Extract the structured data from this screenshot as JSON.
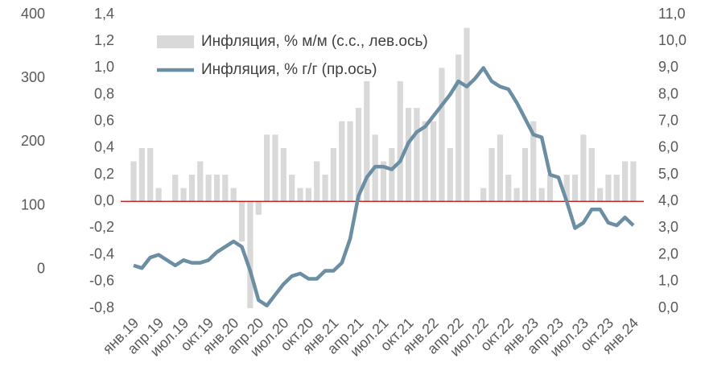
{
  "chart_data": {
    "type": "bar_line",
    "categories": [
      "янв.19",
      null,
      null,
      "апр.19",
      null,
      null,
      "июл.19",
      null,
      null,
      "окт.19",
      null,
      null,
      "янв.20",
      null,
      null,
      "апр.20",
      null,
      null,
      "июл.20",
      null,
      null,
      "окт.20",
      null,
      null,
      "янв.21",
      null,
      null,
      "апр.21",
      null,
      null,
      "июл.21",
      null,
      null,
      "окт.21",
      null,
      null,
      "янв.22",
      null,
      null,
      "апр.22",
      null,
      null,
      "июл.22",
      null,
      null,
      "окт.22",
      null,
      null,
      "янв.23",
      null,
      null,
      "апр.23",
      null,
      null,
      "июл.23",
      null,
      null,
      "окт.23",
      null,
      null,
      "янв.24"
    ],
    "series": [
      {
        "name": "Инфляция, % м/м (с.с., лев.ось)",
        "type": "bar",
        "color": "#d9d9d9",
        "axis": "y",
        "values": [
          0.3,
          0.4,
          0.4,
          0.1,
          0.0,
          0.2,
          0.1,
          0.2,
          0.3,
          0.2,
          0.2,
          0.2,
          0.1,
          -0.3,
          -0.8,
          -0.1,
          0.5,
          0.5,
          0.4,
          0.2,
          0.1,
          0.1,
          0.3,
          0.2,
          0.4,
          0.6,
          0.6,
          0.7,
          0.9,
          0.5,
          0.3,
          0.4,
          0.9,
          0.7,
          0.7,
          0.6,
          0.6,
          1.0,
          0.4,
          1.1,
          1.3,
          0.0,
          0.1,
          0.4,
          0.5,
          0.2,
          0.1,
          0.4,
          0.6,
          0.1,
          0.2,
          0.0,
          0.2,
          0.2,
          0.5,
          0.4,
          0.1,
          0.2,
          0.2,
          0.3,
          0.3
        ]
      },
      {
        "name": "Инфляция, % г/г (пр.ось)",
        "type": "line",
        "color": "#6b8ea3",
        "axis": "y2",
        "values": [
          1.6,
          1.5,
          1.9,
          2.0,
          1.8,
          1.6,
          1.8,
          1.7,
          1.7,
          1.8,
          2.1,
          2.3,
          2.5,
          2.3,
          1.4,
          0.3,
          0.1,
          0.5,
          0.9,
          1.2,
          1.3,
          1.1,
          1.1,
          1.4,
          1.4,
          1.7,
          2.6,
          4.2,
          4.9,
          5.3,
          5.3,
          5.2,
          5.5,
          6.2,
          6.6,
          6.8,
          7.2,
          7.6,
          8.0,
          8.5,
          8.3,
          8.6,
          9.0,
          8.5,
          8.3,
          8.2,
          7.7,
          7.1,
          6.5,
          6.4,
          5.0,
          4.9,
          4.0,
          3.0,
          3.2,
          3.7,
          3.7,
          3.2,
          3.1,
          3.4,
          3.1
        ]
      }
    ],
    "ylim": [
      -0.8,
      1.4
    ],
    "yticks": [
      {
        "value": -0.8,
        "label": "-0,8"
      },
      {
        "value": -0.6,
        "label": "-0,6"
      },
      {
        "value": -0.4,
        "label": "-0,4"
      },
      {
        "value": -0.2,
        "label": "-0,2"
      },
      {
        "value": 0,
        "label": "0,0"
      },
      {
        "value": 0.2,
        "label": "0,2"
      },
      {
        "value": 0.4,
        "label": "0,4"
      },
      {
        "value": 0.6,
        "label": "0,6"
      },
      {
        "value": 0.8,
        "label": "0,8"
      },
      {
        "value": 1.0,
        "label": "1,0"
      },
      {
        "value": 1.2,
        "label": "1,2"
      },
      {
        "value": 1.4,
        "label": "1,4"
      }
    ],
    "y2lim": [
      0,
      11
    ],
    "y2ticks": [
      {
        "value": 0,
        "label": "0,0"
      },
      {
        "value": 1,
        "label": "1,0"
      },
      {
        "value": 2,
        "label": "2,0"
      },
      {
        "value": 3,
        "label": "3,0"
      },
      {
        "value": 4,
        "label": "4,0"
      },
      {
        "value": 5,
        "label": "5,0"
      },
      {
        "value": 6,
        "label": "6,0"
      },
      {
        "value": 7,
        "label": "7,0"
      },
      {
        "value": 8,
        "label": "8,0"
      },
      {
        "value": 9,
        "label": "9,0"
      },
      {
        "value": 10,
        "label": "10,0"
      },
      {
        "value": 11,
        "label": "11,0"
      }
    ],
    "y3lim": [
      -61,
      400
    ],
    "y3ticks": [
      0,
      100,
      200,
      300,
      400
    ],
    "zero_line_color": "#c00000",
    "legend": "upper left"
  }
}
